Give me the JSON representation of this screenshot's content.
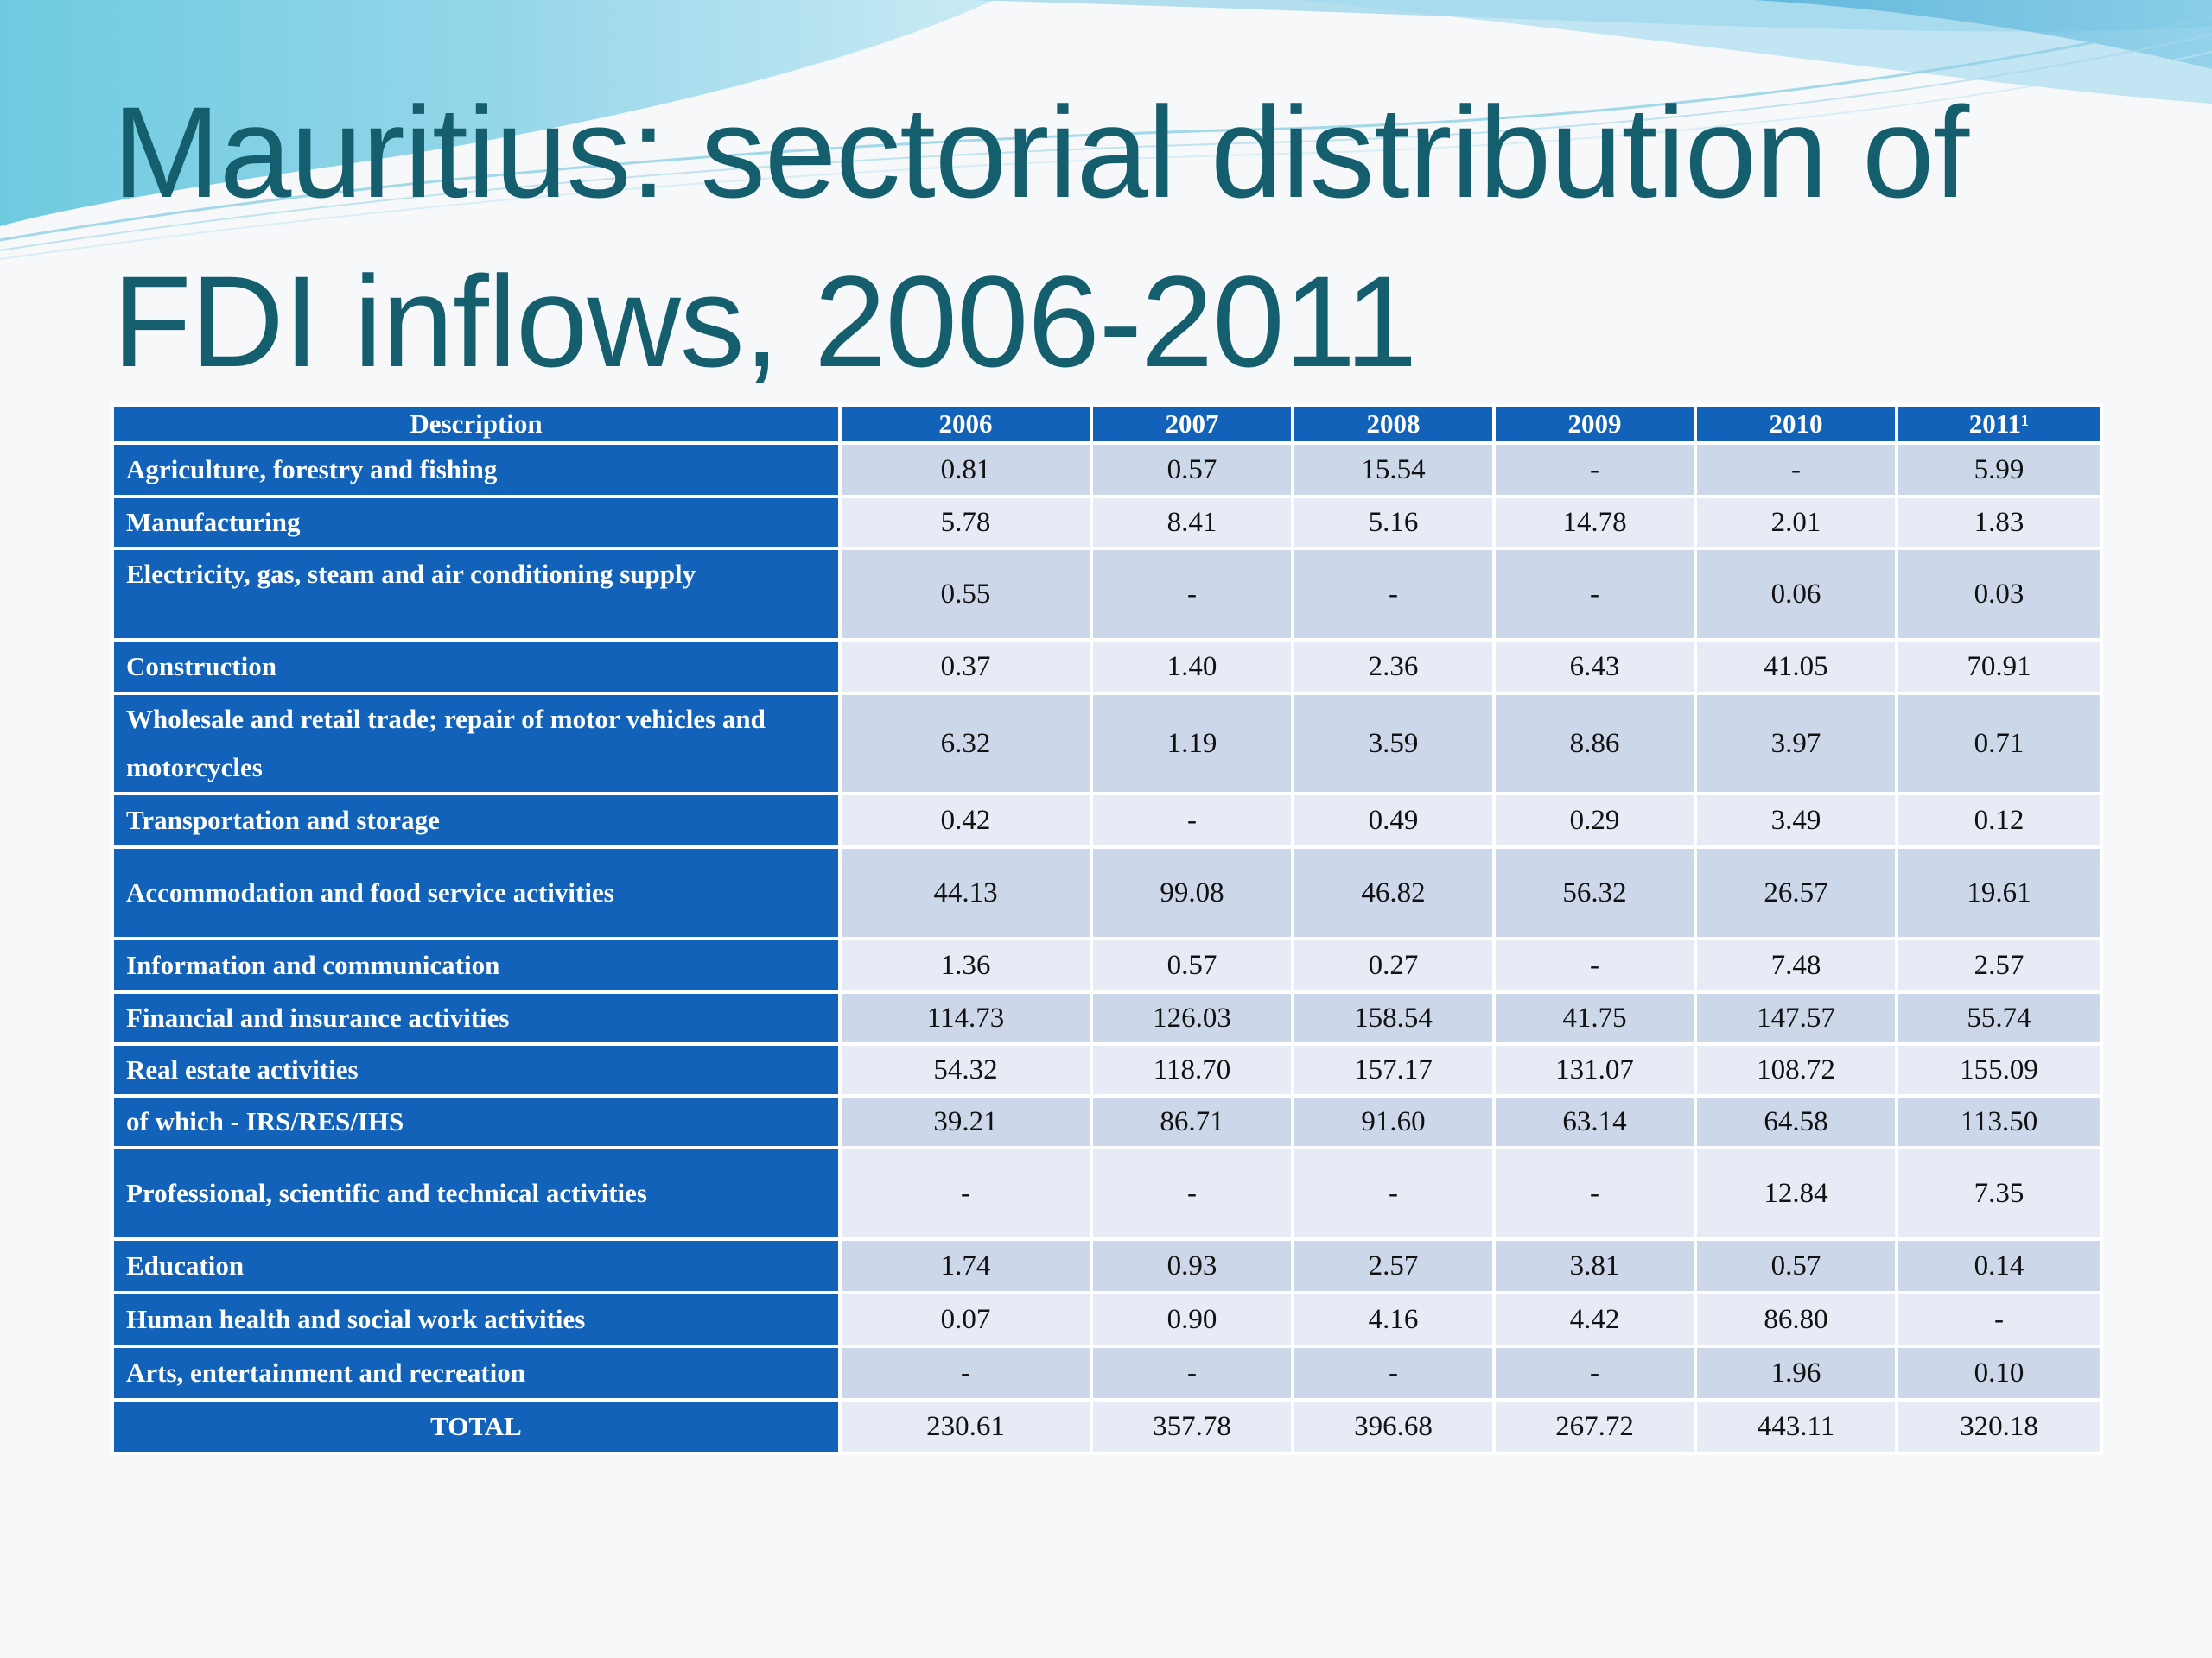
{
  "slide": {
    "title_line1": "Mauritius: sectorial distribution of",
    "title_line2": "FDI inflows, 2006-2011"
  },
  "table": {
    "headers": [
      "Description",
      "2006",
      "2007",
      "2008",
      "2009",
      "2010",
      "2011¹"
    ],
    "rows": [
      {
        "label": "Agriculture, forestry and fishing",
        "values": [
          "0.81",
          "0.57",
          "15.54",
          "-",
          "-",
          "5.99"
        ]
      },
      {
        "label": "Manufacturing",
        "values": [
          "5.78",
          "8.41",
          "5.16",
          "14.78",
          "2.01",
          "1.83"
        ]
      },
      {
        "label": "Electricity, gas, steam and air conditioning supply",
        "values": [
          "0.55",
          "-",
          "-",
          "-",
          "0.06",
          "0.03"
        ]
      },
      {
        "label": "Construction",
        "values": [
          "0.37",
          "1.40",
          "2.36",
          "6.43",
          "41.05",
          "70.91"
        ]
      },
      {
        "label": "Wholesale and retail trade; repair of motor vehicles and motorcycles",
        "values": [
          "6.32",
          "1.19",
          "3.59",
          "8.86",
          "3.97",
          "0.71"
        ]
      },
      {
        "label": "Transportation and storage",
        "values": [
          "0.42",
          "-",
          "0.49",
          "0.29",
          "3.49",
          "0.12"
        ]
      },
      {
        "label": "Accommodation and food service activities",
        "values": [
          "44.13",
          "99.08",
          "46.82",
          "56.32",
          "26.57",
          "19.61"
        ]
      },
      {
        "label": "Information and communication",
        "values": [
          "1.36",
          "0.57",
          "0.27",
          "-",
          "7.48",
          "2.57"
        ]
      },
      {
        "label": "Financial and insurance activities",
        "values": [
          "114.73",
          "126.03",
          "158.54",
          "41.75",
          "147.57",
          "55.74"
        ]
      },
      {
        "label": "Real estate activities",
        "values": [
          "54.32",
          "118.70",
          "157.17",
          "131.07",
          "108.72",
          "155.09"
        ]
      },
      {
        "label": "of which - IRS/RES/IHS",
        "values": [
          "39.21",
          "86.71",
          "91.60",
          "63.14",
          "64.58",
          "113.50"
        ]
      },
      {
        "label": "Professional, scientific and technical activities",
        "values": [
          "-",
          "-",
          "-",
          "-",
          "12.84",
          "7.35"
        ]
      },
      {
        "label": "Education",
        "values": [
          "1.74",
          "0.93",
          "2.57",
          "3.81",
          "0.57",
          "0.14"
        ]
      },
      {
        "label": "Human health and social work activities",
        "values": [
          "0.07",
          "0.90",
          "4.16",
          "4.42",
          "86.80",
          "-"
        ]
      },
      {
        "label": "Arts, entertainment and recreation",
        "values": [
          "-",
          "-",
          "-",
          "-",
          "1.96",
          "0.10"
        ]
      },
      {
        "label": "TOTAL",
        "values": [
          "230.61",
          "357.78",
          "396.68",
          "267.72",
          "443.11",
          "320.18"
        ]
      }
    ]
  }
}
